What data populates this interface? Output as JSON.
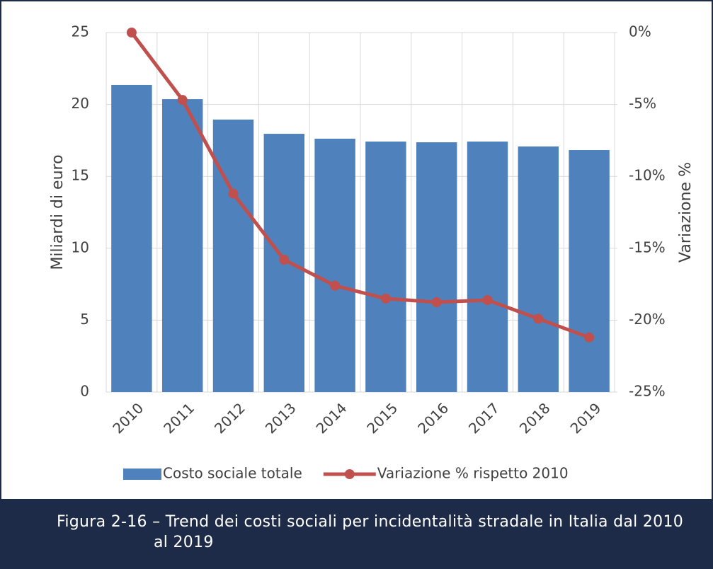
{
  "chart_data": {
    "type": "bar_line",
    "categories": [
      "2010",
      "2011",
      "2012",
      "2013",
      "2014",
      "2015",
      "2016",
      "2017",
      "2018",
      "2019"
    ],
    "series": [
      {
        "name": "Costo sociale totale",
        "type": "bar",
        "color": "#4f81bd",
        "values": [
          21.36,
          20.37,
          18.95,
          17.96,
          17.62,
          17.42,
          17.37,
          17.42,
          17.08,
          16.83
        ]
      },
      {
        "name": "Variazione % rispetto 2010",
        "type": "line",
        "axis": "y2",
        "color": "#c0504d",
        "values": [
          0,
          -4.68,
          -11.2,
          -15.8,
          -17.6,
          -18.5,
          -18.75,
          -18.6,
          -19.9,
          -21.2
        ]
      }
    ],
    "ylabel": "Miliardi di euro",
    "y2label": "Variazione %",
    "ylim": [
      0,
      25
    ],
    "yticks": [
      0,
      5,
      10,
      15,
      20,
      25
    ],
    "y2lim": [
      -25,
      0
    ],
    "y2ticks": [
      {
        "value": -25,
        "label": "-25%"
      },
      {
        "value": -20,
        "label": "-20%"
      },
      {
        "value": -15,
        "label": "-15%"
      },
      {
        "value": -10,
        "label": "-10%"
      },
      {
        "value": -5,
        "label": "-5%"
      },
      {
        "value": 0,
        "label": "0%"
      }
    ],
    "grid": true,
    "legend": "bottom"
  },
  "caption": "Figura 2-16 – Trend dei costi sociali per incidentalità stradale in Italia dal 2010 al 2019"
}
